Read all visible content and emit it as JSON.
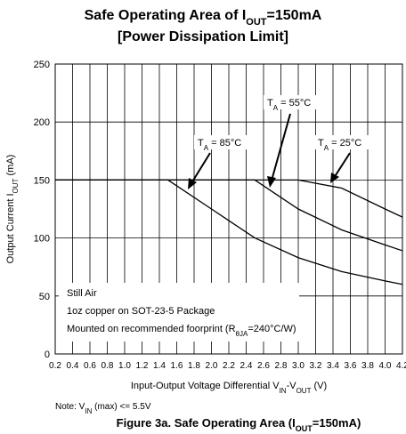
{
  "chart_data": {
    "type": "line",
    "title": [
      "Safe Operating Area of I",
      "OUT",
      "=150mA"
    ],
    "subtitle": "[Power Dissipation Limit]",
    "x_label": [
      "Input-Output Voltage Differential V",
      "IN",
      "-V",
      "OUT",
      " (V)"
    ],
    "y_label": [
      "Output Current I",
      "OUT",
      " (mA)"
    ],
    "series": [
      {
        "name": [
          "T",
          "A",
          " = 85°C"
        ],
        "color": "#000000",
        "x": [
          0.2,
          1.5,
          2.0,
          2.5,
          3.0,
          3.5,
          4.0,
          4.2
        ],
        "values": [
          150,
          150,
          125,
          100,
          83,
          71,
          63,
          60
        ]
      },
      {
        "name": [
          "T",
          "A",
          " = 55°C"
        ],
        "color": "#000000",
        "x": [
          0.2,
          2.5,
          3.0,
          3.5,
          4.0,
          4.2
        ],
        "values": [
          150,
          150,
          125,
          107,
          94,
          89
        ]
      },
      {
        "name": [
          "T",
          "A",
          " = 25°C"
        ],
        "color": "#000000",
        "x": [
          0.2,
          3.0,
          3.5,
          4.0,
          4.2
        ],
        "values": [
          150,
          150,
          143,
          125,
          118
        ]
      }
    ],
    "notes": [
      "Still Air",
      "1oz copper on SOT-23-5 Package",
      [
        "Mounted on recommended foorprint (R",
        "θJA",
        "=240°C/W)"
      ]
    ],
    "footnote": [
      "Note: V",
      "IN",
      " (max) <= 5.5V"
    ],
    "caption": [
      "Figure 3a. Safe Operating Area (I",
      "OUT",
      "=150mA)"
    ],
    "xlim": [
      0.2,
      4.2
    ],
    "xticks": [
      0.2,
      0.4,
      0.6,
      0.8,
      {
        "value": 1,
        "label": "1.0"
      },
      1.2,
      1.4,
      1.6,
      1.8,
      {
        "value": 2,
        "label": "2.0"
      },
      2.2,
      2.4,
      2.6,
      2.8,
      {
        "value": 3,
        "label": "3.0"
      },
      3.2,
      3.4,
      3.6,
      3.8,
      {
        "value": 4,
        "label": "4.0"
      },
      4.2
    ],
    "ylim": [
      0,
      250
    ],
    "yticks": [
      0,
      50,
      100,
      150,
      200,
      250
    ],
    "grid": true
  }
}
